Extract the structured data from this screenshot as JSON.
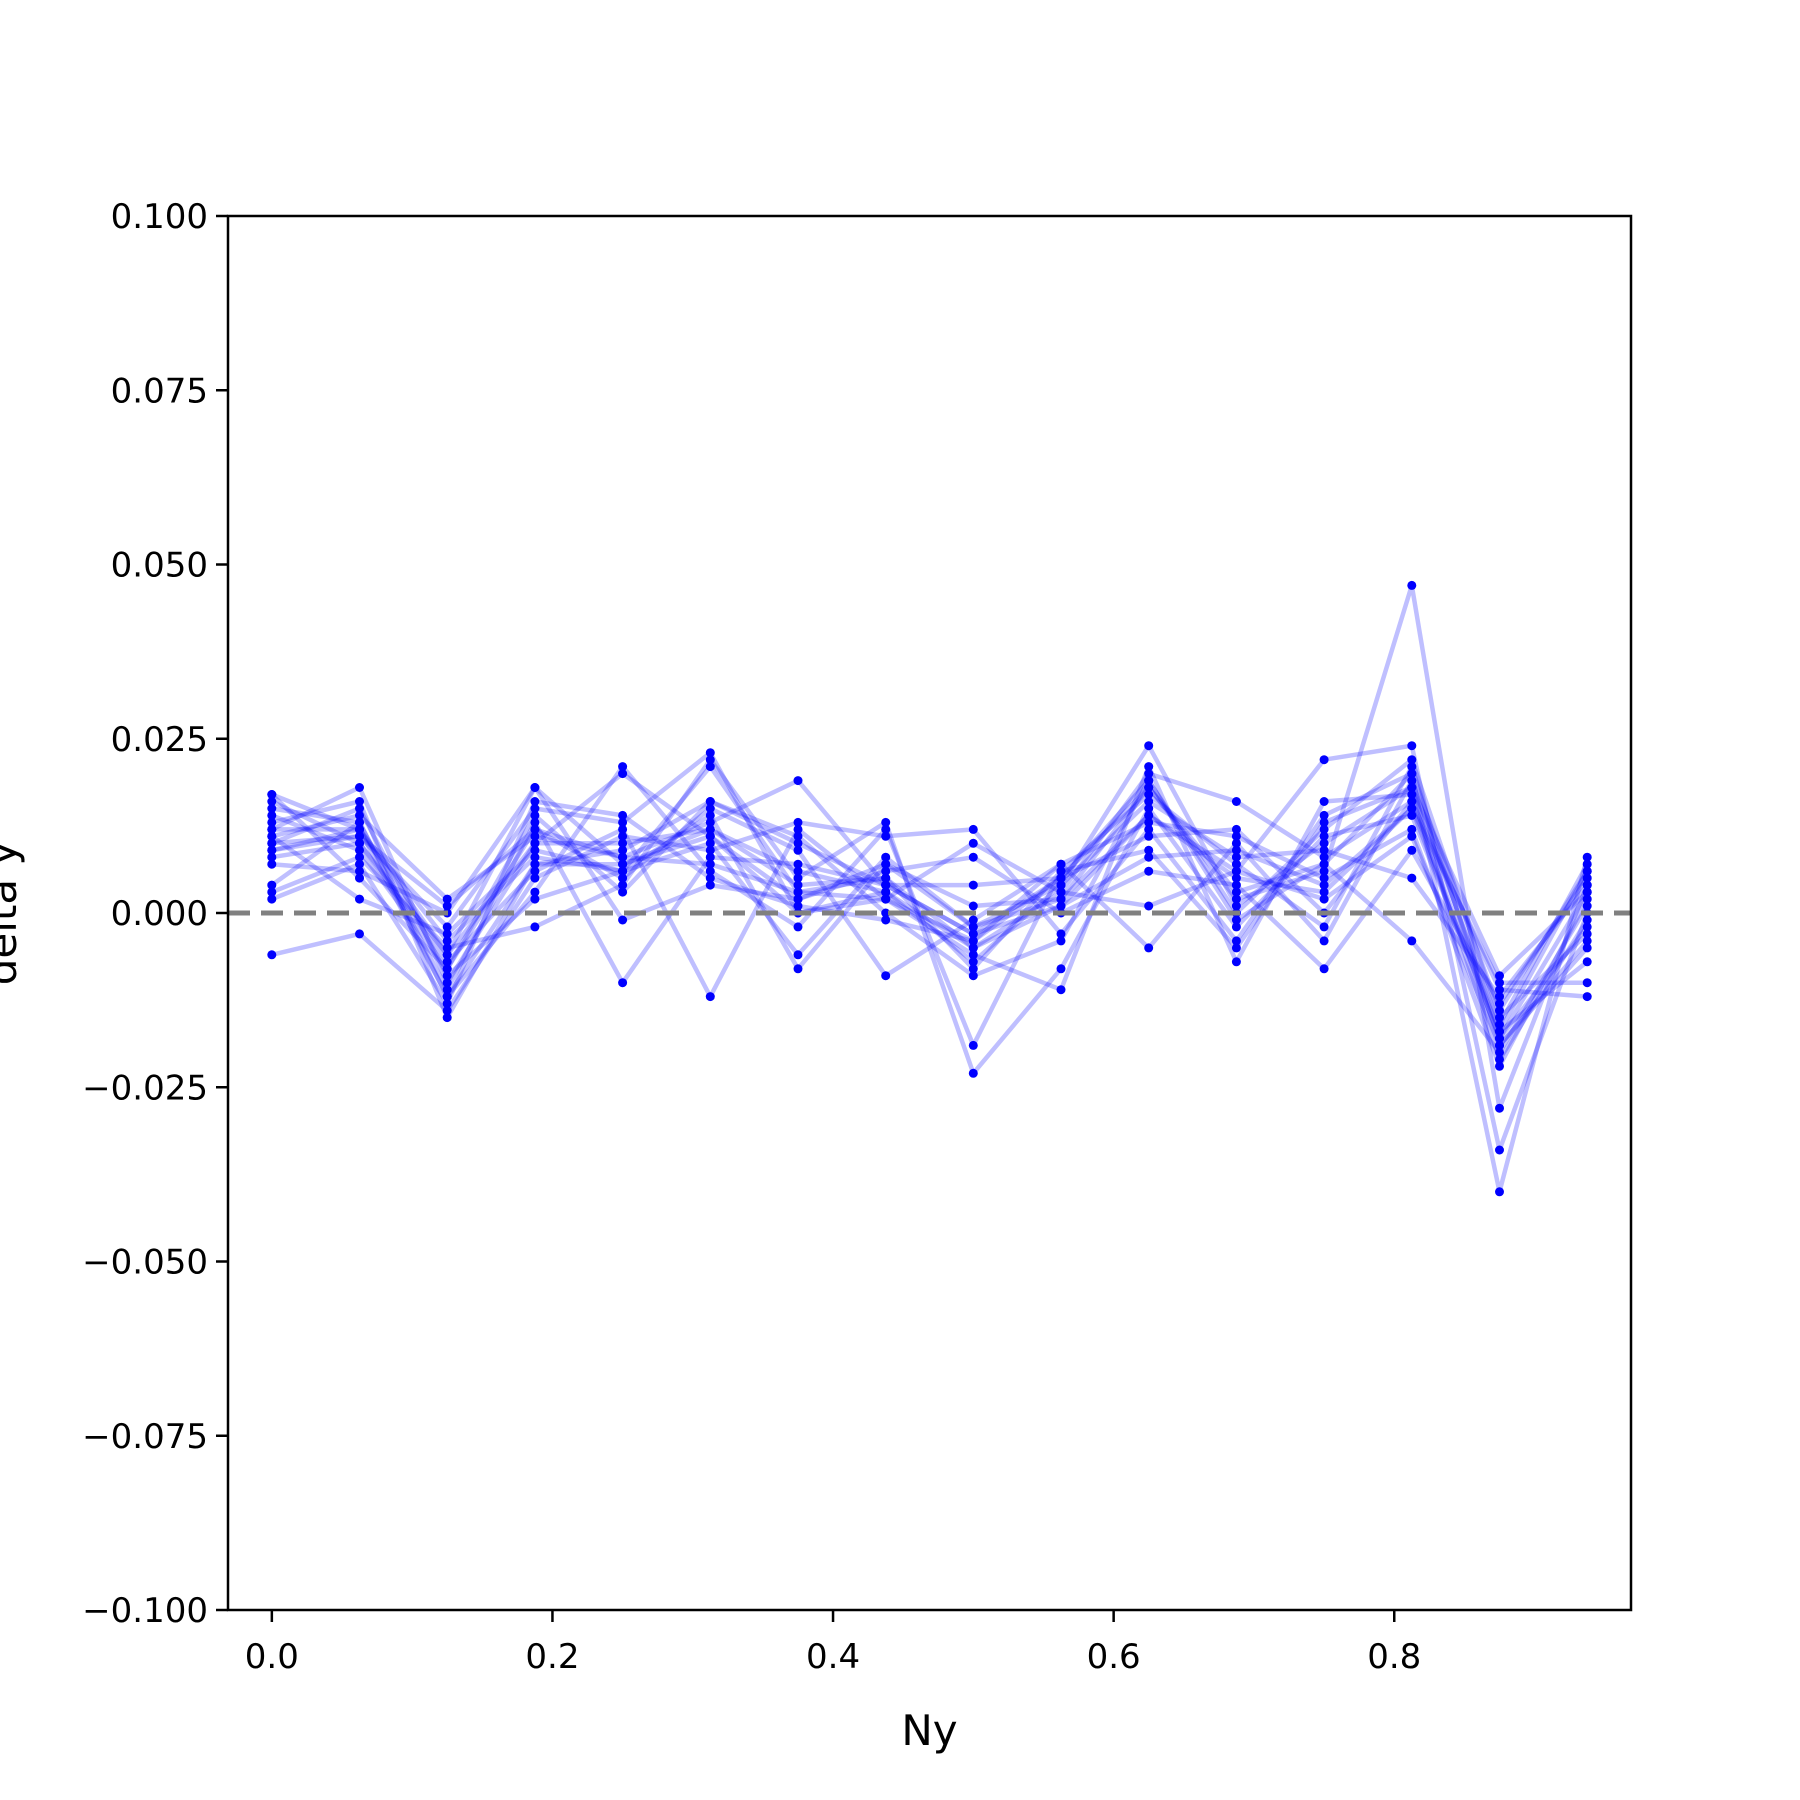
{
  "chart_data": {
    "type": "line",
    "xlabel": "Ny",
    "ylabel": "delta y",
    "xlim": [
      -0.03125,
      0.96875
    ],
    "ylim": [
      -0.1,
      0.1
    ],
    "xticks": [
      0.0,
      0.2,
      0.4,
      0.6,
      0.8
    ],
    "xtick_labels": [
      "0.0",
      "0.2",
      "0.4",
      "0.6",
      "0.8"
    ],
    "yticks": [
      -0.1,
      -0.075,
      -0.05,
      -0.025,
      0.0,
      0.025,
      0.05,
      0.075,
      0.1
    ],
    "ytick_labels": [
      "−0.100",
      "−0.075",
      "−0.050",
      "−0.025",
      "0.000",
      "0.025",
      "0.050",
      "0.075",
      "0.100"
    ],
    "grid": false,
    "reference_line": {
      "y": 0.0,
      "style": "dashed",
      "color": "#808080"
    },
    "series_color": "#0000ff",
    "line_opacity": 0.25,
    "x": [
      0.0,
      0.0625,
      0.125,
      0.1875,
      0.25,
      0.3125,
      0.375,
      0.4375,
      0.5,
      0.5625,
      0.625,
      0.6875,
      0.75,
      0.8125,
      0.875,
      0.9375
    ],
    "series": [
      {
        "values": [
          0.017,
          0.012,
          -0.004,
          0.008,
          0.006,
          0.021,
          0.003,
          0.002,
          -0.004,
          0.005,
          0.018,
          0.002,
          0.006,
          0.047,
          -0.028,
          0.004
        ]
      },
      {
        "values": [
          0.016,
          0.01,
          -0.006,
          0.018,
          0.007,
          0.012,
          0.004,
          0.005,
          -0.005,
          0.003,
          0.02,
          0.016,
          0.008,
          0.016,
          -0.018,
          0.003
        ]
      },
      {
        "values": [
          0.012,
          0.018,
          -0.01,
          0.01,
          0.02,
          0.011,
          0.002,
          0.007,
          -0.002,
          0.002,
          0.014,
          0.006,
          0.022,
          0.024,
          -0.034,
          0.0
        ]
      },
      {
        "values": [
          0.01,
          0.011,
          -0.002,
          0.015,
          0.013,
          0.023,
          0.0,
          0.003,
          -0.007,
          0.004,
          0.024,
          0.001,
          0.01,
          0.018,
          -0.016,
          0.007
        ]
      },
      {
        "values": [
          -0.006,
          -0.003,
          -0.014,
          0.005,
          0.011,
          0.009,
          0.013,
          0.011,
          0.012,
          -0.003,
          0.012,
          -0.004,
          0.014,
          0.02,
          -0.04,
          0.008
        ]
      },
      {
        "values": [
          0.011,
          0.014,
          0.002,
          0.011,
          0.008,
          0.013,
          0.019,
          0.004,
          -0.003,
          0.001,
          0.008,
          0.009,
          0.004,
          0.015,
          -0.01,
          -0.01
        ]
      },
      {
        "values": [
          0.009,
          0.012,
          -0.012,
          0.003,
          0.021,
          0.006,
          -0.002,
          0.012,
          -0.019,
          0.006,
          0.017,
          0.007,
          -0.002,
          0.021,
          -0.019,
          -0.005
        ]
      },
      {
        "values": [
          0.014,
          0.009,
          -0.008,
          0.012,
          0.005,
          0.015,
          0.009,
          -0.009,
          -0.001,
          0.007,
          0.013,
          0.011,
          0.005,
          0.012,
          -0.022,
          0.002
        ]
      },
      {
        "values": [
          0.007,
          0.006,
          0.0,
          0.018,
          -0.001,
          0.004,
          0.002,
          0.006,
          0.008,
          0.0,
          0.006,
          0.004,
          -0.008,
          0.009,
          -0.013,
          0.005
        ]
      },
      {
        "values": [
          0.013,
          0.016,
          -0.015,
          0.007,
          0.009,
          0.016,
          0.011,
          0.0,
          -0.009,
          -0.004,
          0.019,
          0.0,
          0.012,
          0.022,
          -0.015,
          -0.003
        ]
      },
      {
        "values": [
          0.003,
          0.008,
          -0.005,
          -0.002,
          0.004,
          0.022,
          0.005,
          0.013,
          -0.023,
          -0.008,
          0.015,
          -0.002,
          0.011,
          0.014,
          -0.017,
          0.006
        ]
      },
      {
        "values": [
          0.015,
          0.013,
          -0.011,
          0.013,
          -0.01,
          0.008,
          0.007,
          0.004,
          0.004,
          0.005,
          0.011,
          0.012,
          0.0,
          0.016,
          -0.011,
          -0.012
        ]
      },
      {
        "values": [
          0.008,
          0.01,
          -0.007,
          0.006,
          0.012,
          -0.012,
          0.012,
          0.002,
          -0.006,
          -0.011,
          0.021,
          -0.007,
          0.016,
          0.017,
          -0.021,
          -0.001
        ]
      },
      {
        "values": [
          0.011,
          0.002,
          -0.003,
          0.009,
          0.006,
          0.01,
          -0.006,
          0.008,
          -0.002,
          0.004,
          0.016,
          0.008,
          0.009,
          0.005,
          -0.012,
          0.004
        ]
      },
      {
        "values": [
          0.002,
          0.007,
          -0.013,
          0.016,
          0.014,
          0.005,
          0.001,
          -0.001,
          -0.004,
          0.007,
          -0.005,
          0.01,
          -0.004,
          0.019,
          -0.017,
          -0.007
        ]
      },
      {
        "values": [
          0.01,
          0.015,
          -0.009,
          0.002,
          0.006,
          0.014,
          -0.008,
          0.007,
          0.001,
          0.002,
          0.018,
          0.003,
          0.007,
          -0.004,
          -0.02,
          0.001
        ]
      },
      {
        "values": [
          0.009,
          0.011,
          0.001,
          0.012,
          0.008,
          0.007,
          0.003,
          0.005,
          -0.008,
          0.006,
          0.009,
          -0.005,
          0.013,
          0.018,
          -0.009,
          0.003
        ]
      },
      {
        "values": [
          0.012,
          0.012,
          -0.006,
          0.01,
          0.01,
          0.012,
          0.006,
          0.003,
          -0.005,
          0.001,
          0.014,
          0.005,
          0.003,
          0.015,
          -0.018,
          -0.002
        ]
      },
      {
        "values": [
          0.017,
          0.005,
          -0.008,
          0.014,
          0.003,
          0.016,
          0.01,
          0.004,
          -0.003,
          0.005,
          0.019,
          -0.001,
          0.007,
          0.02,
          -0.014,
          0.006
        ]
      },
      {
        "values": [
          0.004,
          0.013,
          -0.012,
          0.007,
          0.007,
          0.011,
          0.0,
          0.002,
          0.01,
          0.003,
          0.001,
          0.006,
          0.002,
          0.011,
          -0.019,
          -0.004
        ]
      }
    ]
  }
}
